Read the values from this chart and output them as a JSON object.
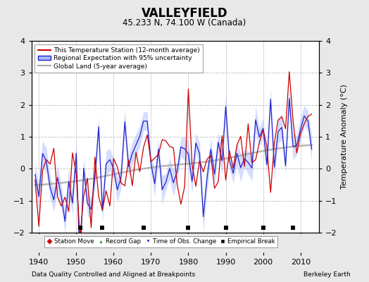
{
  "title": "VALLEYFIELD",
  "subtitle": "45.233 N, 74.100 W (Canada)",
  "xlabel_left": "Data Quality Controlled and Aligned at Breakpoints",
  "xlabel_right": "Berkeley Earth",
  "ylabel": "Temperature Anomaly (°C)",
  "xlim": [
    1938,
    2015
  ],
  "ylim": [
    -2.0,
    4.0
  ],
  "yticks": [
    -2,
    -1,
    0,
    1,
    2,
    3,
    4
  ],
  "xticks": [
    1940,
    1950,
    1960,
    1970,
    1980,
    1990,
    2000,
    2010
  ],
  "bg_color": "#e8e8e8",
  "plot_bg_color": "#ffffff",
  "red_color": "#cc0000",
  "blue_color": "#2222cc",
  "blue_fill_color": "#aabbff",
  "gray_color": "#aaaaaa",
  "grid_color": "#bbbbbb",
  "seed": 17,
  "station_moves": [],
  "record_gaps": [],
  "time_obs_changes": [],
  "empirical_breaks": [
    1951,
    1957,
    1968,
    1980,
    1990,
    2000,
    2008
  ]
}
